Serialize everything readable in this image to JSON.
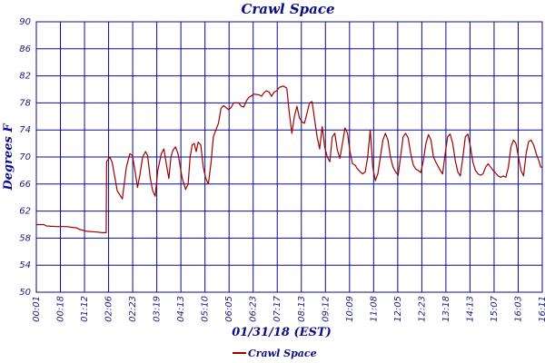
{
  "chart_data": {
    "type": "line",
    "title": "Crawl Space",
    "xlabel": "01/31/18 (EST)",
    "ylabel": "Degrees F",
    "ylim": [
      50,
      90
    ],
    "yticks": [
      50,
      54,
      58,
      62,
      66,
      70,
      74,
      78,
      82,
      86,
      90
    ],
    "x_tick_labels": [
      "00:01",
      "00:18",
      "01:12",
      "02:06",
      "02:23",
      "03:19",
      "04:13",
      "05:10",
      "06:05",
      "06:23",
      "07:17",
      "08:13",
      "09:12",
      "10:09",
      "11:08",
      "12:05",
      "12:23",
      "13:18",
      "14:13",
      "15:07",
      "16:03",
      "16:11"
    ],
    "grid": true,
    "legend": "bottom-center",
    "series": [
      {
        "name": "Crawl Space",
        "color": "#a00000",
        "x_range": [
          0,
          100
        ],
        "points": [
          [
            0,
            60.0
          ],
          [
            1.5,
            60.0
          ],
          [
            2,
            59.8
          ],
          [
            4,
            59.7
          ],
          [
            6,
            59.7
          ],
          [
            7,
            59.6
          ],
          [
            8,
            59.5
          ],
          [
            8.5,
            59.3
          ],
          [
            9,
            59.2
          ],
          [
            10,
            59.0
          ],
          [
            12,
            58.9
          ],
          [
            13,
            58.8
          ],
          [
            13.8,
            58.8
          ],
          [
            13.9,
            69.3
          ],
          [
            14.5,
            70.0
          ],
          [
            15,
            69.2
          ],
          [
            16,
            65.0
          ],
          [
            17,
            63.8
          ],
          [
            17.8,
            68.5
          ],
          [
            18.5,
            70.5
          ],
          [
            19,
            70.2
          ],
          [
            19.5,
            68.0
          ],
          [
            20,
            65.5
          ],
          [
            20.5,
            67.5
          ],
          [
            21,
            70.0
          ],
          [
            21.6,
            70.8
          ],
          [
            22,
            70.2
          ],
          [
            22.5,
            67.0
          ],
          [
            23,
            65.0
          ],
          [
            23.5,
            64.2
          ],
          [
            24,
            68.0
          ],
          [
            24.7,
            70.5
          ],
          [
            25.2,
            71.2
          ],
          [
            25.8,
            68.5
          ],
          [
            26.2,
            66.8
          ],
          [
            26.6,
            70.0
          ],
          [
            27,
            71.0
          ],
          [
            27.5,
            71.5
          ],
          [
            28,
            70.5
          ],
          [
            28.8,
            67.0
          ],
          [
            29.5,
            65.2
          ],
          [
            30,
            66.0
          ],
          [
            30.4,
            70.0
          ],
          [
            30.8,
            71.8
          ],
          [
            31.2,
            72.0
          ],
          [
            31.6,
            70.8
          ],
          [
            32,
            72.2
          ],
          [
            32.5,
            71.8
          ],
          [
            33,
            68.5
          ],
          [
            33.5,
            66.8
          ],
          [
            34,
            66.0
          ],
          [
            34.5,
            69.0
          ],
          [
            35,
            73.0
          ],
          [
            35.5,
            74.0
          ],
          [
            36,
            75.0
          ],
          [
            36.5,
            77.2
          ],
          [
            37,
            77.6
          ],
          [
            37.5,
            77.3
          ],
          [
            38,
            77.0
          ],
          [
            38.5,
            77.3
          ],
          [
            39,
            78.0
          ],
          [
            40,
            78.0
          ],
          [
            40.5,
            77.5
          ],
          [
            41,
            77.4
          ],
          [
            41.5,
            78.3
          ],
          [
            42,
            78.8
          ],
          [
            43,
            79.3
          ],
          [
            44,
            79.2
          ],
          [
            44.5,
            79.0
          ],
          [
            45,
            79.5
          ],
          [
            45.5,
            79.8
          ],
          [
            46,
            79.6
          ],
          [
            46.5,
            79.0
          ],
          [
            47,
            79.6
          ],
          [
            47.5,
            79.8
          ],
          [
            48,
            80.3
          ],
          [
            48.8,
            80.5
          ],
          [
            49.5,
            80.2
          ],
          [
            50,
            76.5
          ],
          [
            50.5,
            73.5
          ],
          [
            51,
            76.0
          ],
          [
            51.5,
            77.5
          ],
          [
            52,
            75.8
          ],
          [
            52.5,
            75.2
          ],
          [
            53,
            75.0
          ],
          [
            53.5,
            76.5
          ],
          [
            54,
            78.0
          ],
          [
            54.5,
            78.2
          ],
          [
            55,
            75.5
          ],
          [
            55.5,
            73.0
          ],
          [
            56,
            71.2
          ],
          [
            56.5,
            74.5
          ],
          [
            57,
            71.5
          ],
          [
            57.5,
            70.0
          ],
          [
            58,
            69.3
          ],
          [
            58.5,
            73.0
          ],
          [
            59,
            73.5
          ],
          [
            59.5,
            71.0
          ],
          [
            60,
            69.8
          ],
          [
            60.5,
            72.0
          ],
          [
            61,
            74.3
          ],
          [
            61.5,
            73.5
          ],
          [
            62,
            70.8
          ],
          [
            62.5,
            69.0
          ],
          [
            63,
            68.8
          ],
          [
            63.5,
            68.2
          ],
          [
            64,
            67.8
          ],
          [
            64.5,
            67.5
          ],
          [
            65,
            67.8
          ],
          [
            65.5,
            70.0
          ],
          [
            66,
            74.0
          ],
          [
            66.5,
            68.5
          ],
          [
            67,
            66.5
          ],
          [
            67.5,
            67.5
          ],
          [
            68,
            70.0
          ],
          [
            68.5,
            72.5
          ],
          [
            69,
            73.5
          ],
          [
            69.5,
            72.5
          ],
          [
            70,
            70.0
          ],
          [
            70.5,
            68.5
          ],
          [
            71,
            67.8
          ],
          [
            71.5,
            67.3
          ],
          [
            72,
            70.0
          ],
          [
            72.5,
            73.0
          ],
          [
            73,
            73.5
          ],
          [
            73.5,
            72.8
          ],
          [
            74,
            70.5
          ],
          [
            74.5,
            68.8
          ],
          [
            75,
            68.2
          ],
          [
            75.5,
            68.0
          ],
          [
            76,
            67.7
          ],
          [
            76.5,
            69.5
          ],
          [
            77,
            72.0
          ],
          [
            77.5,
            73.3
          ],
          [
            78,
            72.5
          ],
          [
            78.5,
            70.0
          ],
          [
            79,
            69.2
          ],
          [
            79.5,
            68.5
          ],
          [
            80,
            67.8
          ],
          [
            80.3,
            67.5
          ],
          [
            80.8,
            70.5
          ],
          [
            81.3,
            73.0
          ],
          [
            81.8,
            73.4
          ],
          [
            82.3,
            72.0
          ],
          [
            82.8,
            69.5
          ],
          [
            83.3,
            67.8
          ],
          [
            83.8,
            67.2
          ],
          [
            84.3,
            70.0
          ],
          [
            84.8,
            73.0
          ],
          [
            85.3,
            73.4
          ],
          [
            85.8,
            71.5
          ],
          [
            86.3,
            69.2
          ],
          [
            86.8,
            68.0
          ],
          [
            87.3,
            67.5
          ],
          [
            87.8,
            67.3
          ],
          [
            88.3,
            67.5
          ],
          [
            88.8,
            68.5
          ],
          [
            89.3,
            69.0
          ],
          [
            89.8,
            68.5
          ],
          [
            90.3,
            68.0
          ],
          [
            90.8,
            67.6
          ],
          [
            91.3,
            67.2
          ],
          [
            91.8,
            67.0
          ],
          [
            92.3,
            67.2
          ],
          [
            92.8,
            67.0
          ],
          [
            93.3,
            68.5
          ],
          [
            93.8,
            71.5
          ],
          [
            94.3,
            72.5
          ],
          [
            94.8,
            72.0
          ],
          [
            95.3,
            70.0
          ],
          [
            95.8,
            68.0
          ],
          [
            96.3,
            67.2
          ],
          [
            96.8,
            70.5
          ],
          [
            97.3,
            72.3
          ],
          [
            97.8,
            72.5
          ],
          [
            98.3,
            71.8
          ],
          [
            98.8,
            70.5
          ],
          [
            99.3,
            69.5
          ],
          [
            99.7,
            68.5
          ],
          [
            100,
            68.5
          ]
        ]
      }
    ]
  }
}
